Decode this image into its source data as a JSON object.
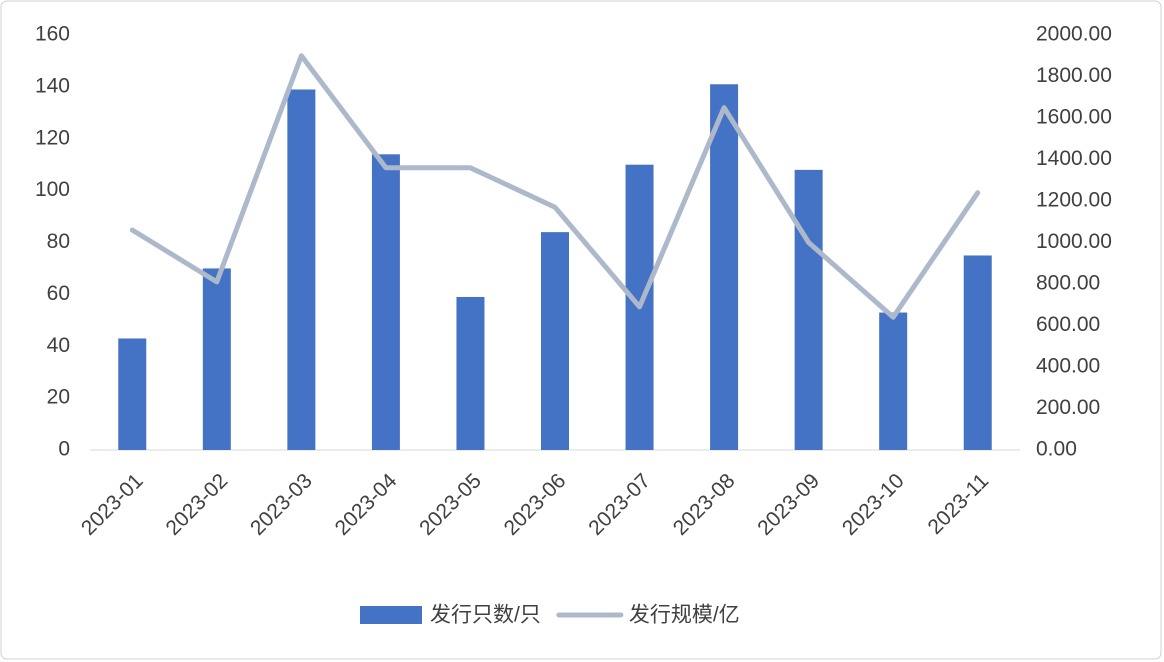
{
  "chart_data": {
    "type": "bar-line",
    "categories": [
      "2023-01",
      "2023-02",
      "2023-03",
      "2023-04",
      "2023-05",
      "2023-06",
      "2023-07",
      "2023-08",
      "2023-09",
      "2023-10",
      "2023-11"
    ],
    "series": [
      {
        "name": "发行只数/只",
        "color": "#4472c4",
        "type": "bar",
        "values": [
          43,
          70,
          139,
          114,
          59,
          84,
          110,
          141,
          108,
          53,
          75
        ]
      },
      {
        "name": "发行规模/亿",
        "color": "#adb9ca",
        "type": "line",
        "axis": "y2",
        "values": [
          1060,
          810,
          1900,
          1360,
          1360,
          1170,
          690,
          1650,
          1000,
          640,
          1240
        ]
      }
    ],
    "ylim": [
      0,
      160
    ],
    "yticks": [
      0,
      20,
      40,
      60,
      80,
      100,
      120,
      140,
      160
    ],
    "y2lim": [
      0,
      2000
    ],
    "y2ticks": [
      {
        "value": 0,
        "label": "0.00"
      },
      {
        "value": 200,
        "label": "200.00"
      },
      {
        "value": 400,
        "label": "400.00"
      },
      {
        "value": 600,
        "label": "600.00"
      },
      {
        "value": 800,
        "label": "800.00"
      },
      {
        "value": 1000,
        "label": "1000.00"
      },
      {
        "value": 1200,
        "label": "1200.00"
      },
      {
        "value": 1400,
        "label": "1400.00"
      },
      {
        "value": 1600,
        "label": "1600.00"
      },
      {
        "value": 1800,
        "label": "1800.00"
      },
      {
        "value": 2000,
        "label": "2000.00"
      }
    ],
    "grid": false,
    "legend": "bottom"
  }
}
